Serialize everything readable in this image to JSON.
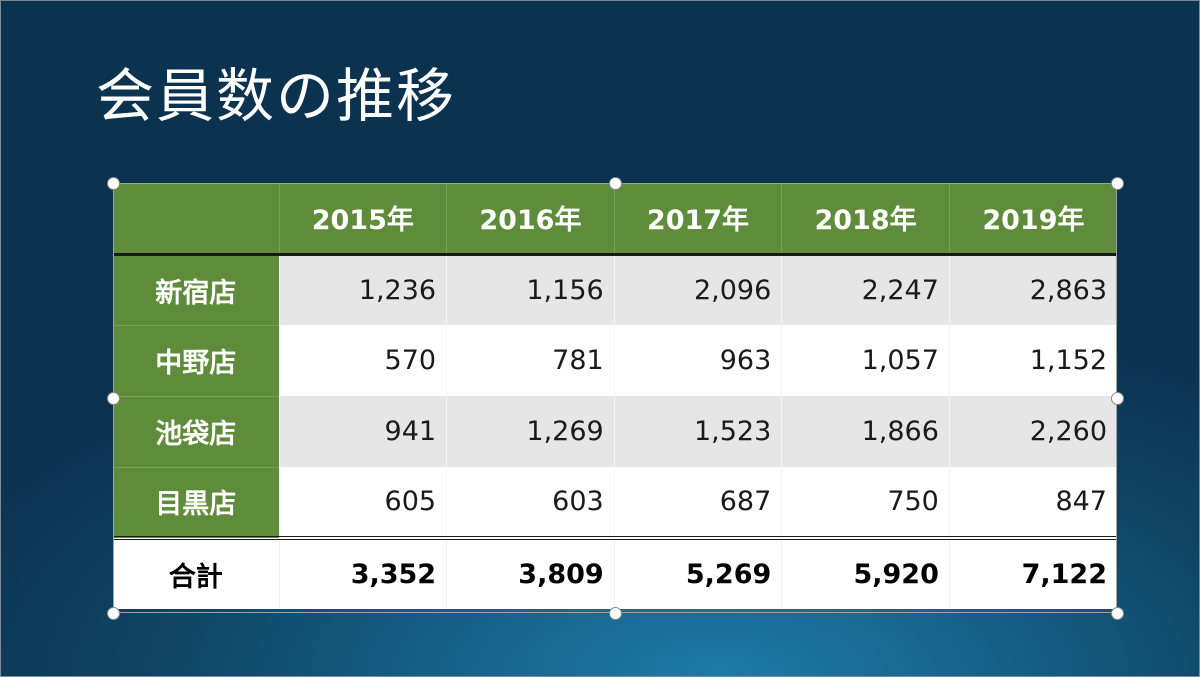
{
  "slide": {
    "title": "会員数の推移"
  },
  "table": {
    "years": [
      "2015年",
      "2016年",
      "2017年",
      "2018年",
      "2019年"
    ],
    "rows": [
      {
        "store": "新宿店",
        "values": [
          "1,236",
          "1,156",
          "2,096",
          "2,247",
          "2,863"
        ]
      },
      {
        "store": "中野店",
        "values": [
          "570",
          "781",
          "963",
          "1,057",
          "1,152"
        ]
      },
      {
        "store": "池袋店",
        "values": [
          "941",
          "1,269",
          "1,523",
          "1,866",
          "2,260"
        ]
      },
      {
        "store": "目黒店",
        "values": [
          "605",
          "603",
          "687",
          "750",
          "847"
        ]
      }
    ],
    "total": {
      "label": "合計",
      "values": [
        "3,352",
        "3,809",
        "5,269",
        "5,920",
        "7,122"
      ]
    }
  },
  "colors": {
    "header_green": "#5e8c3a",
    "band_gray": "#e6e6e6",
    "background": "#0f4565"
  }
}
